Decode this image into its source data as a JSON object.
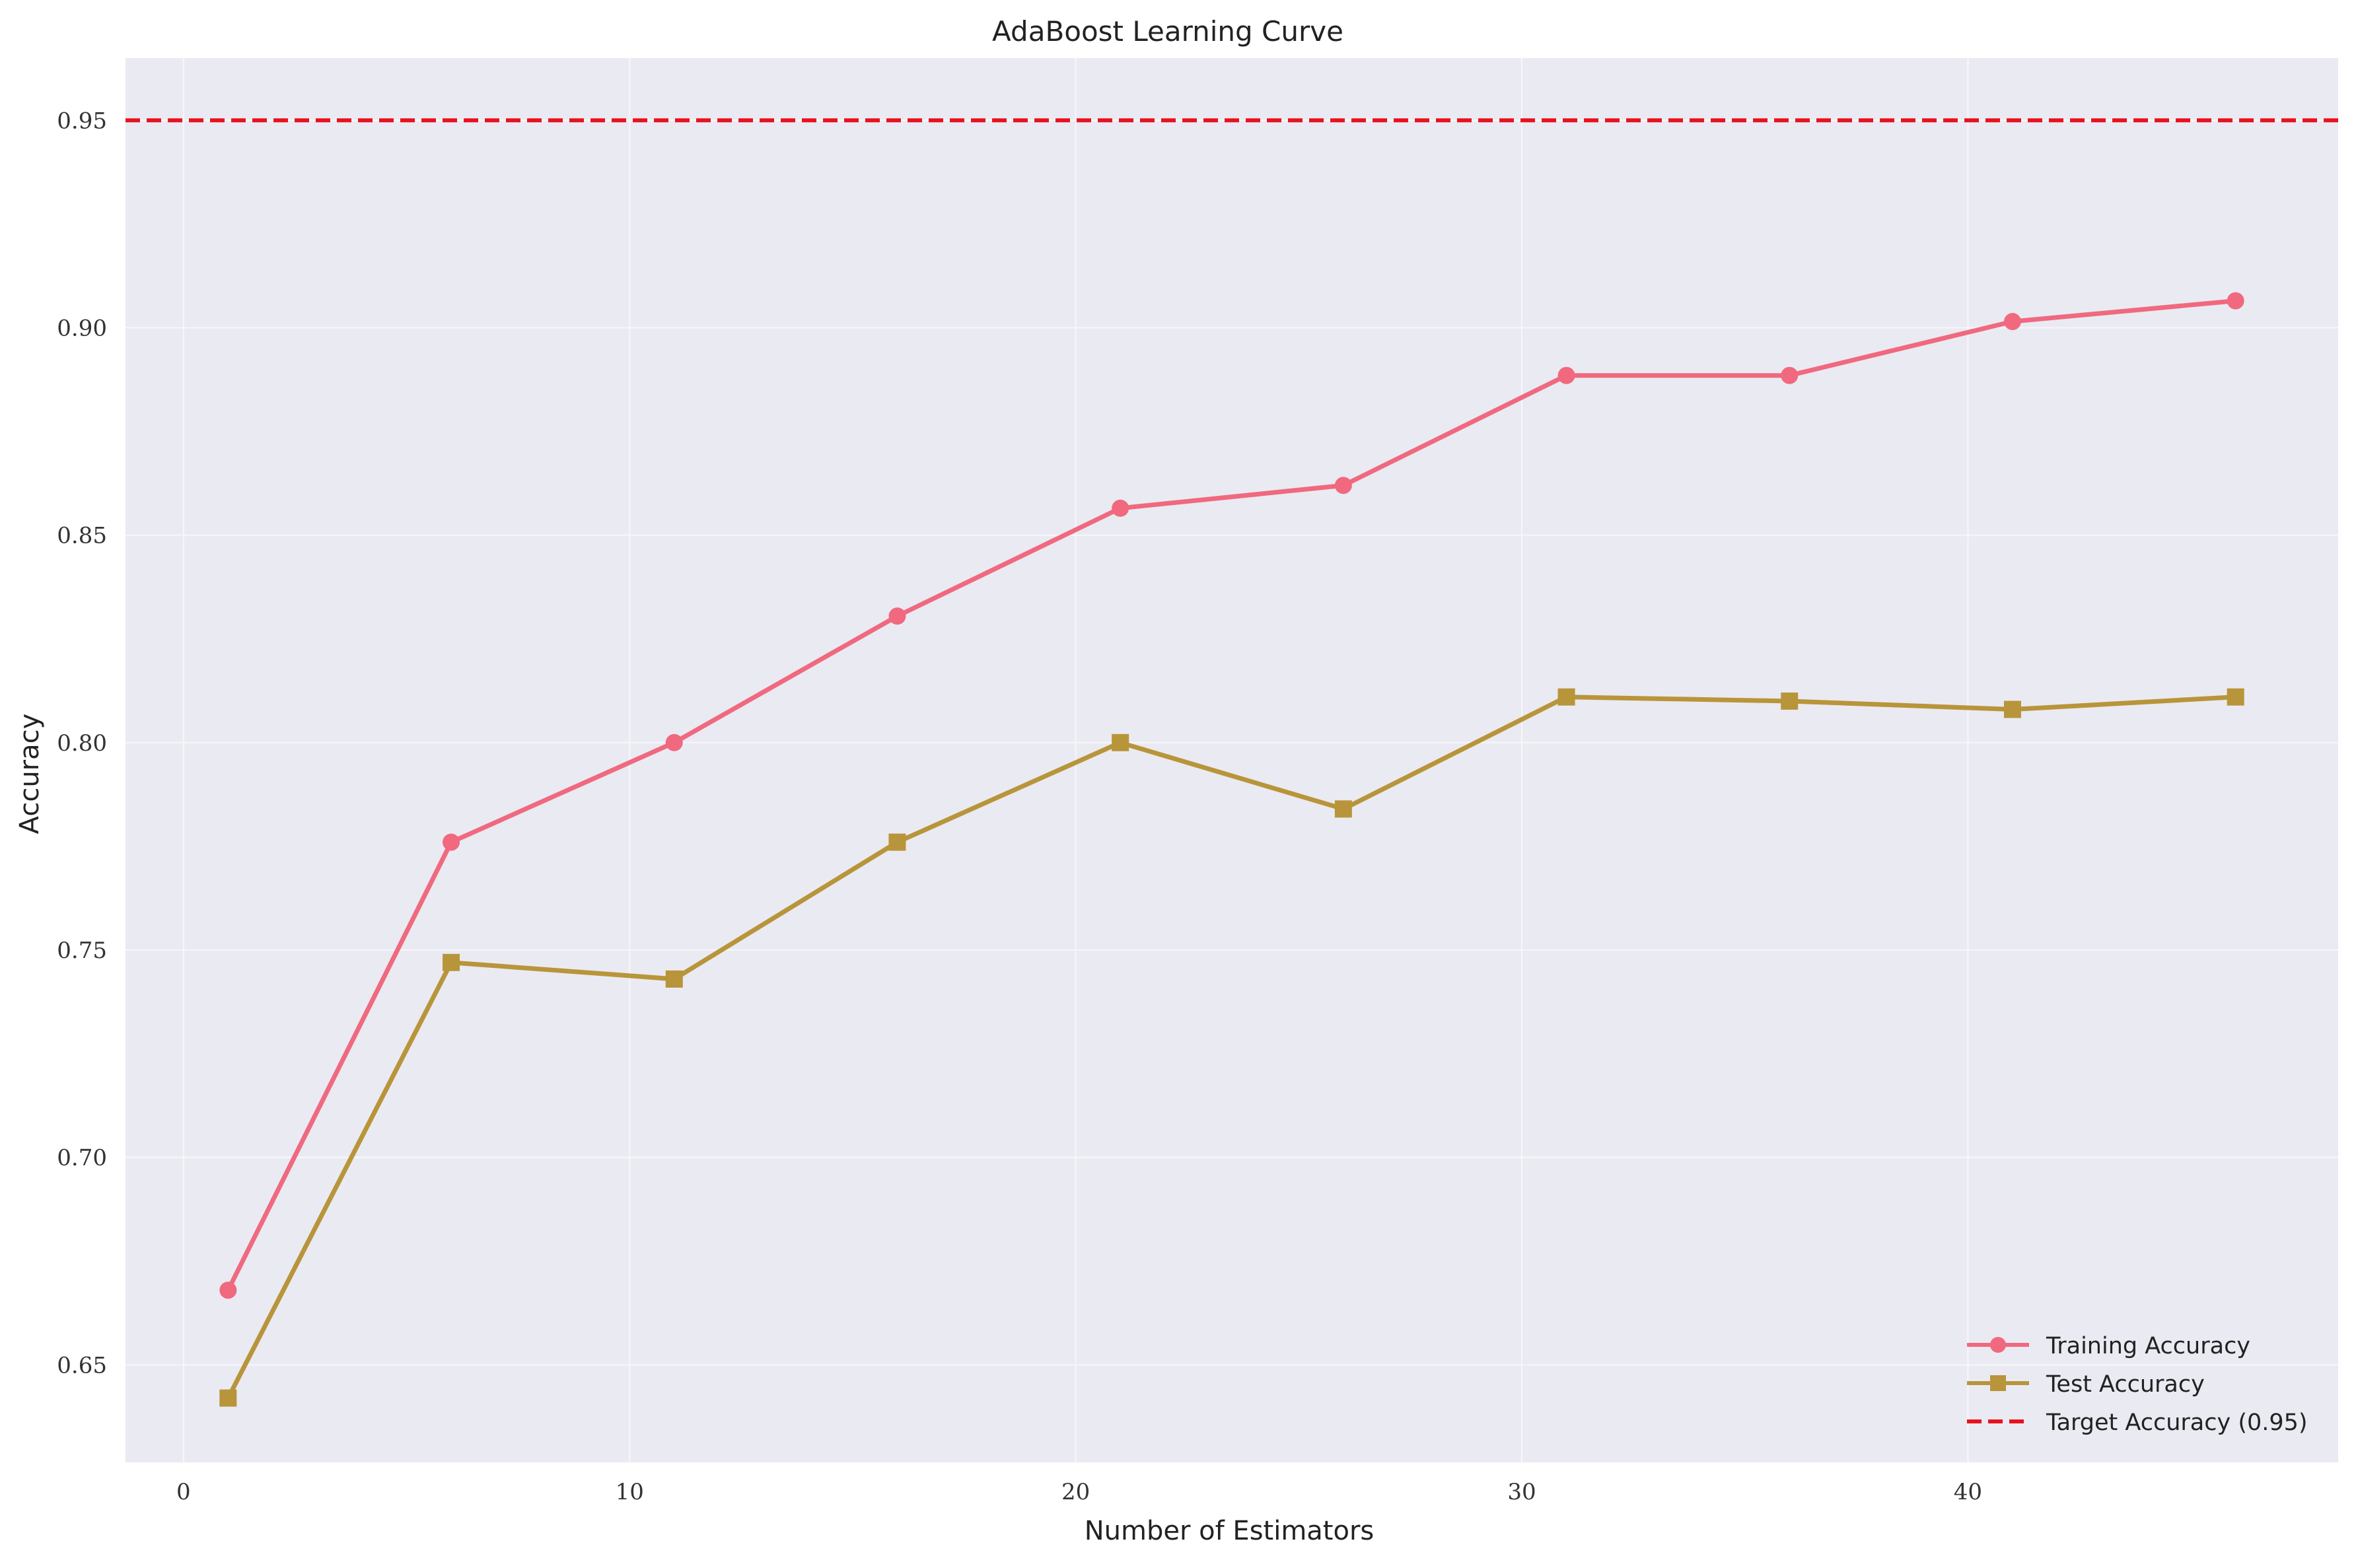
{
  "chart_data": {
    "type": "line",
    "title": "AdaBoost Learning Curve",
    "xlabel": "Number of Estimators",
    "ylabel": "Accuracy",
    "xlim": [
      -1.3,
      48.3
    ],
    "ylim": [
      0.6265,
      0.965
    ],
    "x_ticks": [
      0,
      10,
      20,
      30,
      40
    ],
    "x_tick_labels": [
      "0",
      "10",
      "20",
      "30",
      "40"
    ],
    "y_ticks": [
      0.65,
      0.7,
      0.75,
      0.8,
      0.85,
      0.9,
      0.95
    ],
    "y_tick_labels": [
      "0.65",
      "0.70",
      "0.75",
      "0.80",
      "0.85",
      "0.90",
      "0.95"
    ],
    "grid": true,
    "legend_position": "lower-right",
    "x": [
      1,
      6,
      11,
      16,
      21,
      26,
      31,
      36,
      41,
      46
    ],
    "series": [
      {
        "name": "Training Accuracy",
        "color": "#f0697f",
        "marker": "circle",
        "values": [
          0.668,
          0.776,
          0.8,
          0.8305,
          0.8565,
          0.862,
          0.8885,
          0.8885,
          0.9015,
          0.9065
        ]
      },
      {
        "name": "Test Accuracy",
        "color": "#b8953a",
        "marker": "square",
        "values": [
          0.642,
          0.747,
          0.743,
          0.776,
          0.8,
          0.784,
          0.811,
          0.81,
          0.808,
          0.811
        ]
      }
    ],
    "reference_lines": [
      {
        "name": "Target Accuracy (0.95)",
        "y": 0.95,
        "color": "#e8121f",
        "style": "dashed"
      }
    ]
  }
}
